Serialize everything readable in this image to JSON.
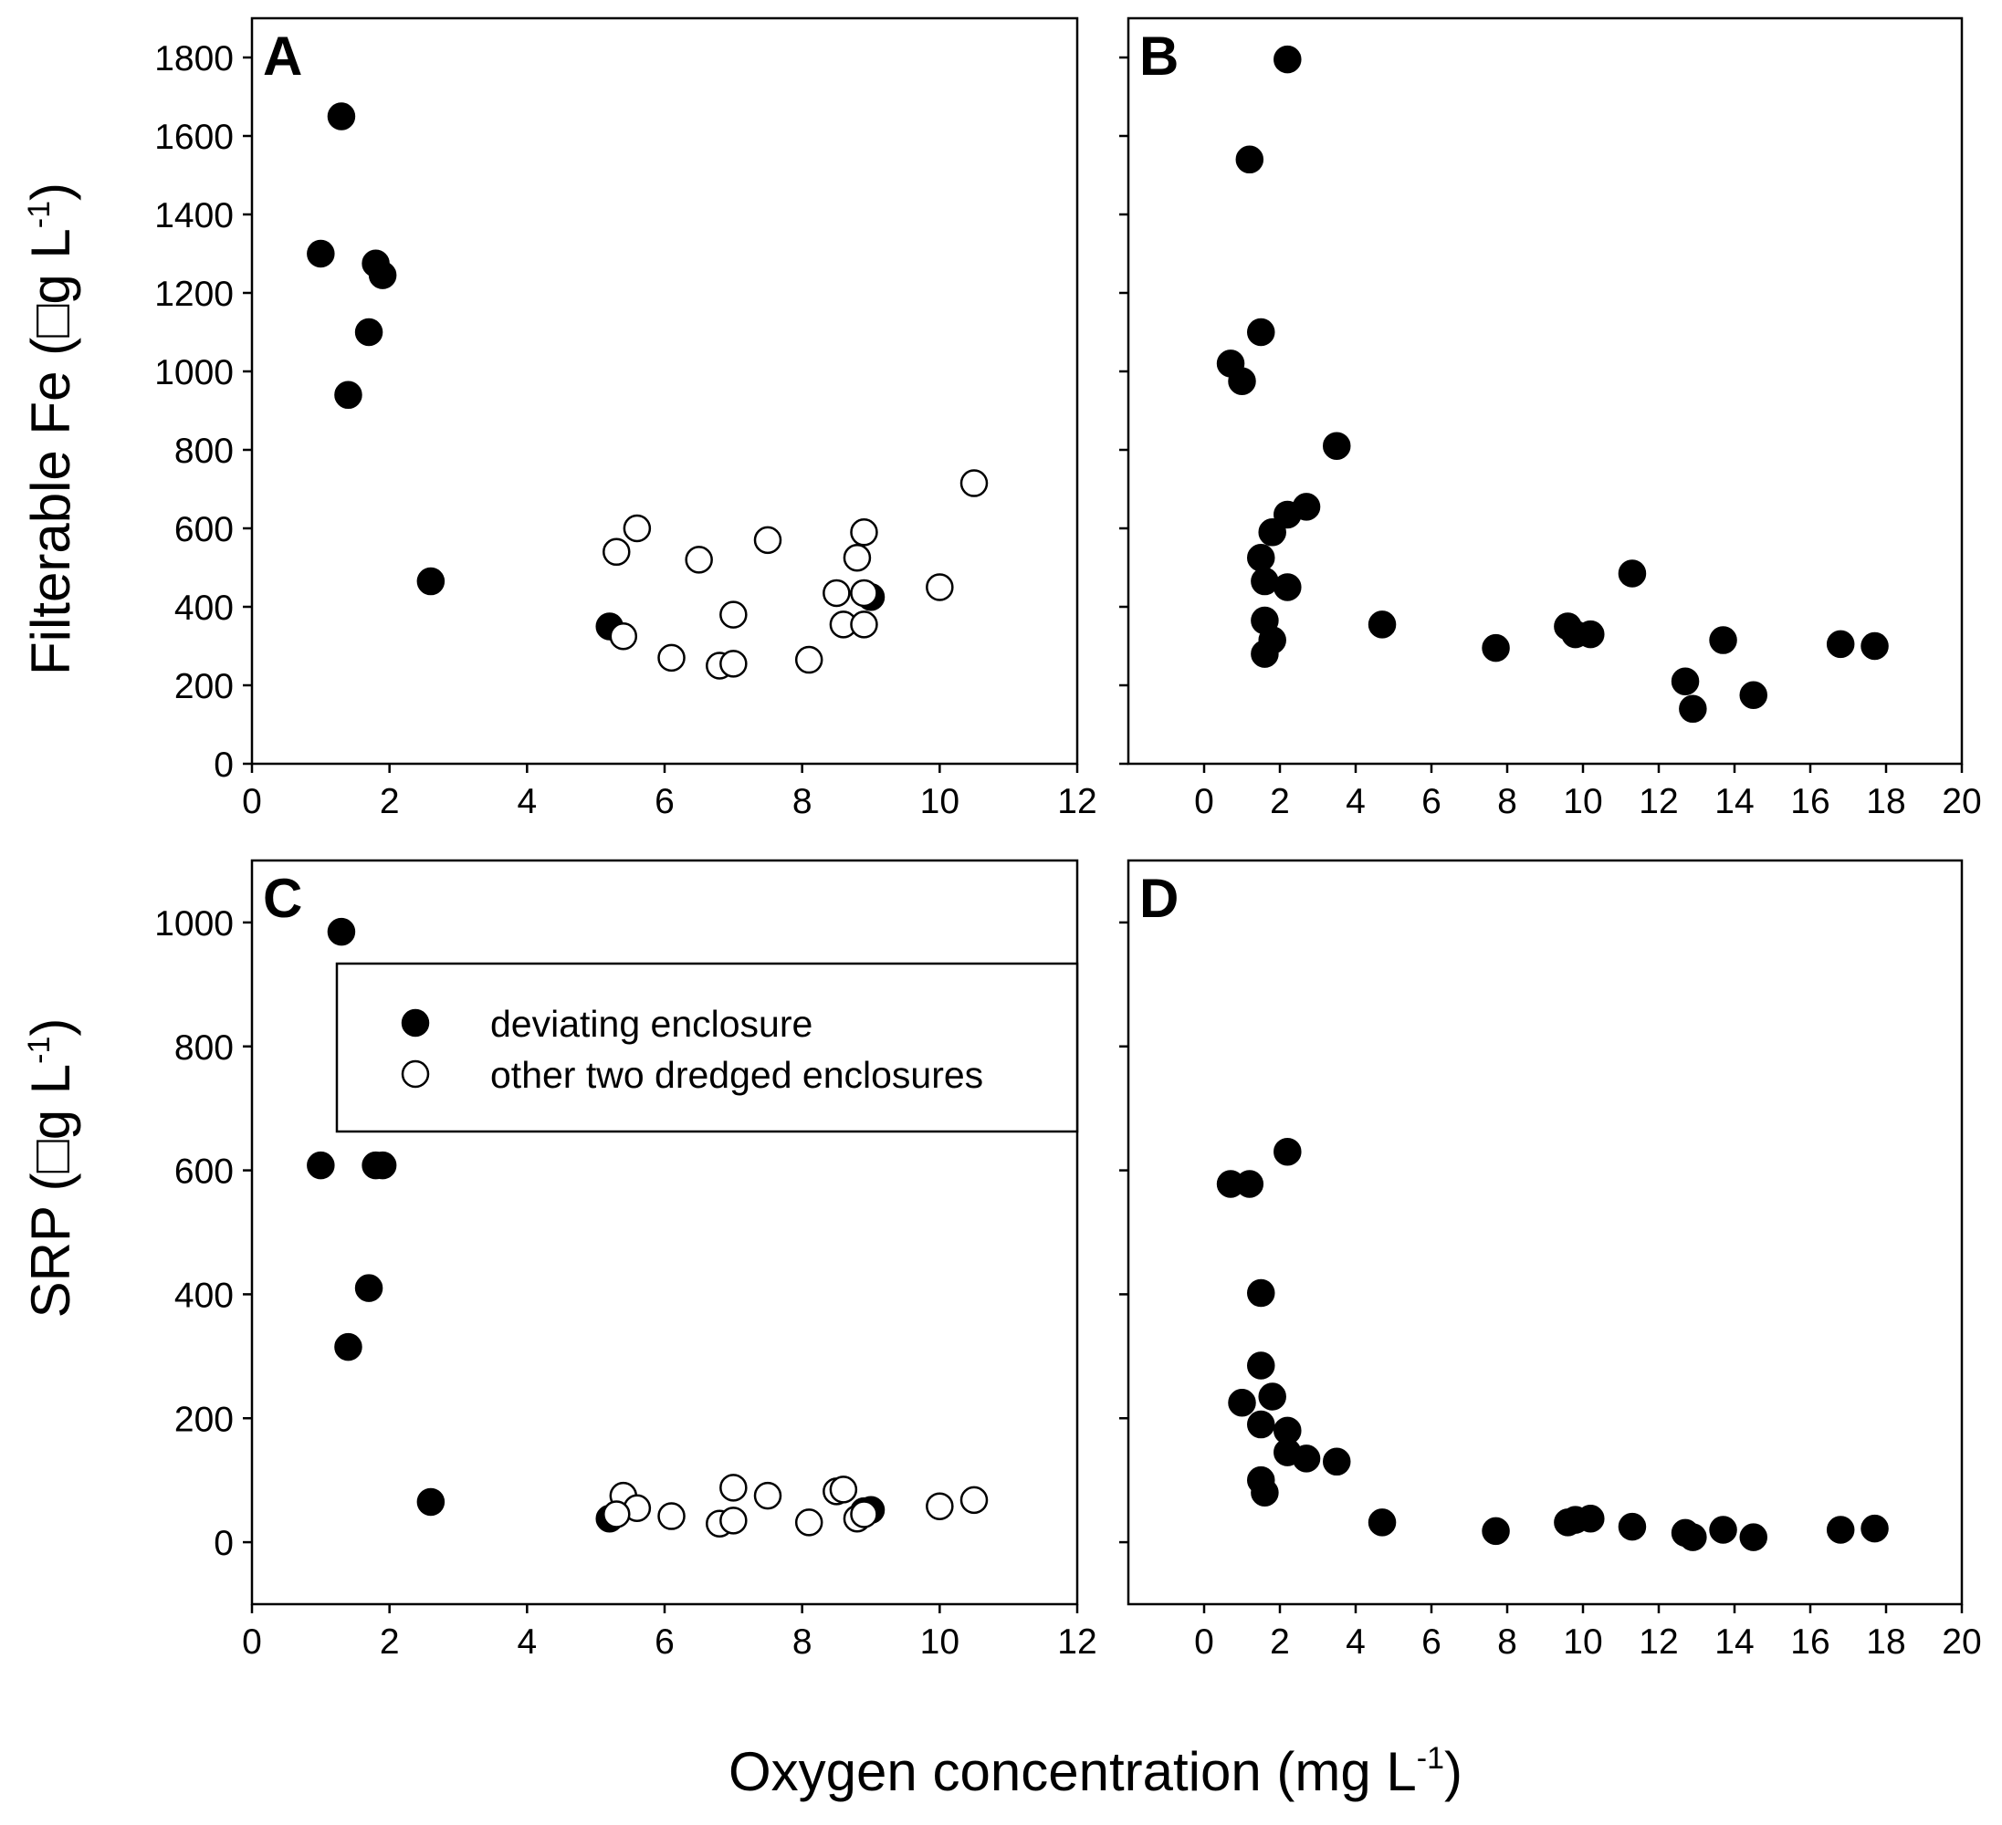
{
  "figure": {
    "xlabel": {
      "main": "Oxygen concentration (mg L",
      "sup": "-1",
      "close": ")"
    },
    "ylabel_top": {
      "main": "Filterable Fe (",
      "glyph": "□",
      "unit": "g L",
      "sup": "-1",
      "close": ")"
    },
    "ylabel_bottom": {
      "main": "SRP (",
      "glyph": "□",
      "unit": "g L",
      "sup": "-1",
      "close": ")"
    }
  },
  "legend": {
    "entries": [
      {
        "label": "deviating enclosure",
        "marker": "filled"
      },
      {
        "label": "other two dredged enclosures",
        "marker": "open"
      }
    ]
  },
  "chart_data": [
    {
      "panel": "A",
      "type": "scatter",
      "xlim": [
        0,
        12
      ],
      "ylim": [
        0,
        1900
      ],
      "xticks": [
        0,
        2,
        4,
        6,
        8,
        10,
        12
      ],
      "yticks": [
        0,
        200,
        400,
        600,
        800,
        1000,
        1200,
        1400,
        1600,
        1800
      ],
      "show_ytick_labels": true,
      "series": [
        {
          "name": "deviating enclosure",
          "marker": "filled",
          "points": [
            [
              1.0,
              1300
            ],
            [
              1.3,
              1650
            ],
            [
              1.8,
              1275
            ],
            [
              1.9,
              1245
            ],
            [
              1.7,
              1100
            ],
            [
              1.4,
              940
            ],
            [
              2.6,
              465
            ],
            [
              5.2,
              350
            ],
            [
              9.0,
              425
            ]
          ]
        },
        {
          "name": "other two dredged enclosures",
          "marker": "open",
          "points": [
            [
              5.3,
              540
            ],
            [
              5.6,
              600
            ],
            [
              6.5,
              520
            ],
            [
              7.5,
              570
            ],
            [
              8.8,
              525
            ],
            [
              8.9,
              590
            ],
            [
              10.5,
              715
            ],
            [
              10.0,
              450
            ],
            [
              8.5,
              435
            ],
            [
              8.9,
              435
            ],
            [
              7.0,
              380
            ],
            [
              8.6,
              355
            ],
            [
              8.9,
              355
            ],
            [
              5.4,
              325
            ],
            [
              6.1,
              270
            ],
            [
              6.8,
              250
            ],
            [
              7.0,
              255
            ],
            [
              8.1,
              265
            ]
          ]
        }
      ]
    },
    {
      "panel": "B",
      "type": "scatter",
      "xlim": [
        -2,
        20
      ],
      "ylim": [
        0,
        1900
      ],
      "xticks": [
        0,
        2,
        4,
        6,
        8,
        10,
        12,
        14,
        16,
        18,
        20
      ],
      "yticks": [
        0,
        200,
        400,
        600,
        800,
        1000,
        1200,
        1400,
        1600,
        1800
      ],
      "show_ytick_labels": false,
      "series": [
        {
          "name": "deviating enclosure",
          "marker": "filled",
          "points": [
            [
              2.2,
              1795
            ],
            [
              1.2,
              1540
            ],
            [
              1.5,
              1100
            ],
            [
              0.7,
              1020
            ],
            [
              1.0,
              975
            ],
            [
              3.5,
              810
            ],
            [
              2.7,
              655
            ],
            [
              2.2,
              635
            ],
            [
              1.8,
              590
            ],
            [
              1.5,
              525
            ],
            [
              1.6,
              465
            ],
            [
              2.2,
              450
            ],
            [
              1.6,
              365
            ],
            [
              1.8,
              315
            ],
            [
              1.6,
              280
            ],
            [
              4.7,
              355
            ],
            [
              7.7,
              295
            ],
            [
              9.6,
              350
            ],
            [
              9.8,
              330
            ],
            [
              10.2,
              330
            ],
            [
              11.3,
              485
            ],
            [
              12.7,
              210
            ],
            [
              12.9,
              140
            ],
            [
              13.7,
              315
            ],
            [
              14.5,
              175
            ],
            [
              16.8,
              305
            ],
            [
              17.7,
              300
            ]
          ]
        }
      ]
    },
    {
      "panel": "C",
      "type": "scatter",
      "xlim": [
        0,
        12
      ],
      "ylim": [
        -100,
        1100
      ],
      "xticks": [
        0,
        2,
        4,
        6,
        8,
        10,
        12
      ],
      "yticks": [
        0,
        200,
        400,
        600,
        800,
        1000
      ],
      "show_ytick_labels": true,
      "series": [
        {
          "name": "deviating enclosure",
          "marker": "filled",
          "points": [
            [
              1.3,
              985
            ],
            [
              1.0,
              608
            ],
            [
              1.8,
              608
            ],
            [
              1.9,
              608
            ],
            [
              1.7,
              410
            ],
            [
              1.4,
              315
            ],
            [
              2.6,
              65
            ],
            [
              5.2,
              38
            ],
            [
              9.0,
              52
            ],
            [
              8.9,
              50
            ]
          ]
        },
        {
          "name": "other two dredged enclosures",
          "marker": "open",
          "points": [
            [
              5.4,
              75
            ],
            [
              5.6,
              55
            ],
            [
              5.3,
              45
            ],
            [
              6.1,
              42
            ],
            [
              6.8,
              30
            ],
            [
              7.0,
              88
            ],
            [
              7.0,
              35
            ],
            [
              7.5,
              75
            ],
            [
              8.1,
              32
            ],
            [
              8.5,
              82
            ],
            [
              8.6,
              85
            ],
            [
              8.8,
              38
            ],
            [
              8.9,
              45
            ],
            [
              10.0,
              58
            ],
            [
              10.5,
              68
            ]
          ]
        }
      ]
    },
    {
      "panel": "D",
      "type": "scatter",
      "xlim": [
        -2,
        20
      ],
      "ylim": [
        -100,
        1100
      ],
      "xticks": [
        0,
        2,
        4,
        6,
        8,
        10,
        12,
        14,
        16,
        18,
        20
      ],
      "yticks": [
        0,
        200,
        400,
        600,
        800,
        1000
      ],
      "show_ytick_labels": false,
      "series": [
        {
          "name": "deviating enclosure",
          "marker": "filled",
          "points": [
            [
              2.2,
              630
            ],
            [
              0.7,
              578
            ],
            [
              1.2,
              578
            ],
            [
              1.5,
              402
            ],
            [
              1.5,
              285
            ],
            [
              1.8,
              235
            ],
            [
              1.0,
              225
            ],
            [
              1.5,
              190
            ],
            [
              2.2,
              180
            ],
            [
              2.2,
              145
            ],
            [
              2.7,
              135
            ],
            [
              3.5,
              130
            ],
            [
              1.5,
              100
            ],
            [
              1.6,
              80
            ],
            [
              4.7,
              32
            ],
            [
              7.7,
              18
            ],
            [
              9.6,
              32
            ],
            [
              9.8,
              36
            ],
            [
              10.2,
              38
            ],
            [
              11.3,
              25
            ],
            [
              12.7,
              15
            ],
            [
              12.9,
              8
            ],
            [
              13.7,
              20
            ],
            [
              14.5,
              8
            ],
            [
              16.8,
              20
            ],
            [
              17.7,
              22
            ]
          ]
        }
      ]
    }
  ]
}
